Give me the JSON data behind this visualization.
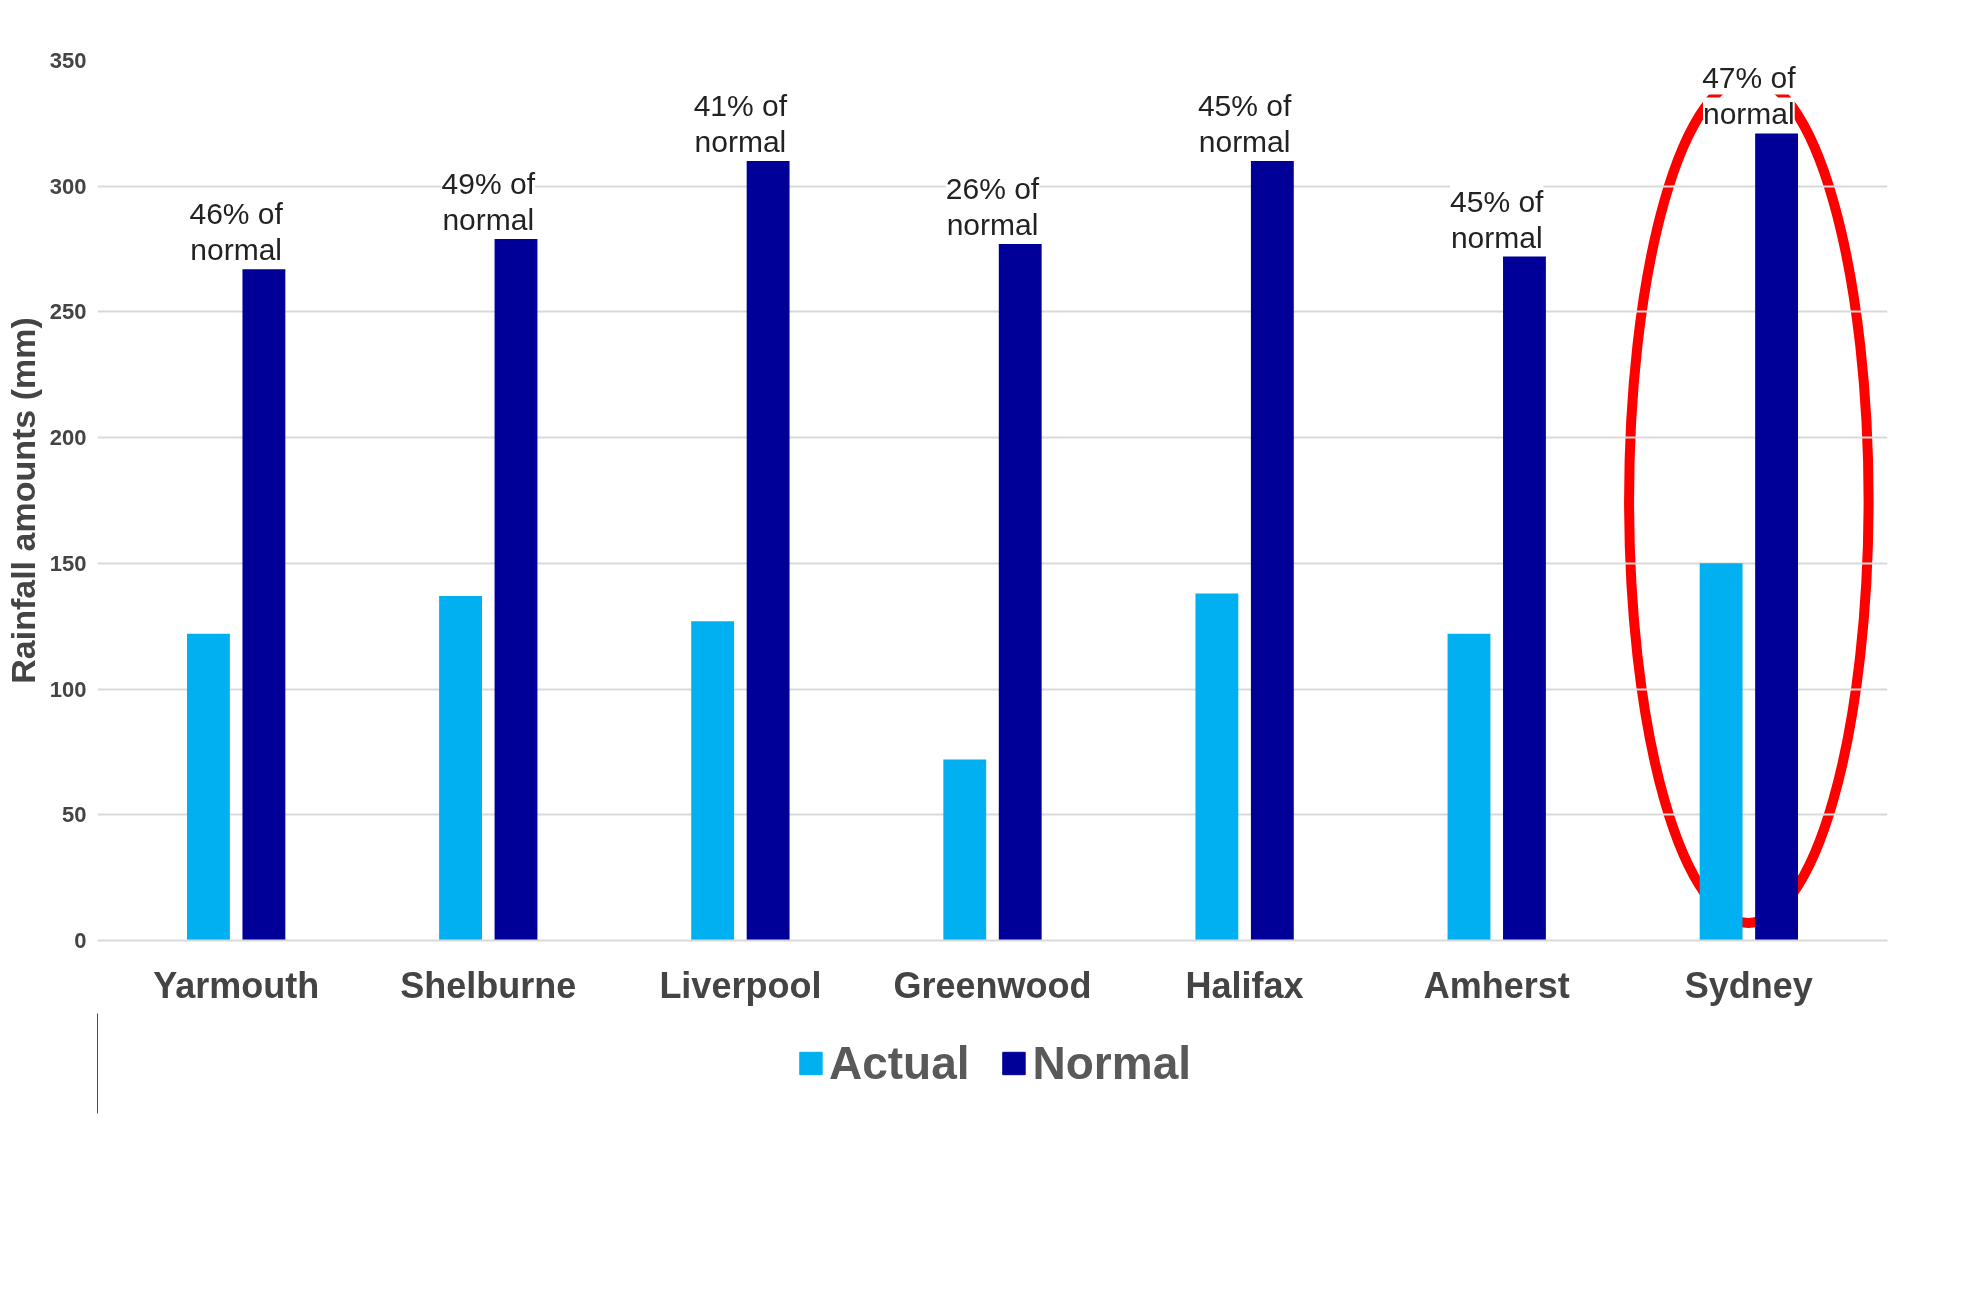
{
  "chart_data": {
    "type": "bar",
    "ylabel": "Rainfall amounts (mm)",
    "categories": [
      "Yarmouth",
      "Shelburne",
      "Liverpool",
      "Greenwood",
      "Halifax",
      "Amherst",
      "Sydney"
    ],
    "series": [
      {
        "name": "Actual",
        "color": "#00b0f0",
        "values": [
          122,
          137,
          127,
          72,
          138,
          122,
          150
        ]
      },
      {
        "name": "Normal",
        "color": "#000099",
        "values": [
          267,
          279,
          310,
          277,
          310,
          272,
          321
        ]
      }
    ],
    "ylim": [
      0,
      350
    ],
    "yticks": [
      0,
      50,
      100,
      150,
      200,
      250,
      300,
      350
    ],
    "grid": "y",
    "legend": "bottom",
    "annotations": [
      "46% of\nnormal",
      "49% of\nnormal",
      "41% of\nnormal",
      "26% of\nnormal",
      "45% of\nnormal",
      "45% of\nnormal",
      "47% of\nnormal"
    ]
  }
}
